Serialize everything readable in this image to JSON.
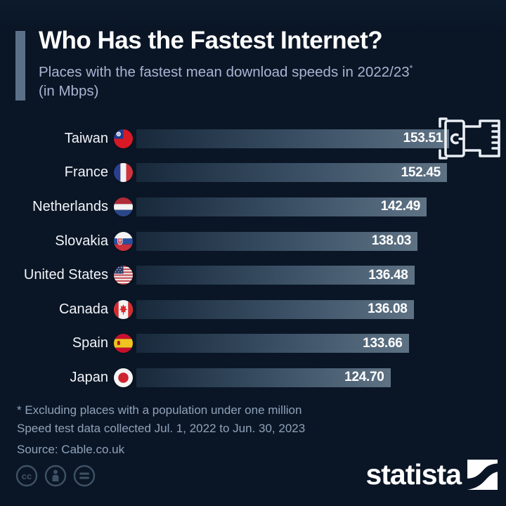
{
  "header": {
    "title": "Who Has the Fastest Internet?",
    "subtitle": "Places with the fastest mean download speeds in 2022/23",
    "subtitle_superscript": "*",
    "subtitle_unit": "(in Mbps)"
  },
  "chart_data": {
    "type": "bar",
    "orientation": "horizontal",
    "title": "Who Has the Fastest Internet?",
    "subtitle": "Places with the fastest mean download speeds in 2022/23* (in Mbps)",
    "unit": "Mbps",
    "xlim": [
      0,
      153.51
    ],
    "grid": false,
    "legend": false,
    "categories": [
      "Taiwan",
      "France",
      "Netherlands",
      "Slovakia",
      "United States",
      "Canada",
      "Spain",
      "Japan"
    ],
    "values": [
      153.51,
      152.45,
      142.49,
      138.03,
      136.48,
      136.08,
      133.66,
      124.7
    ],
    "value_labels": [
      "153.51",
      "152.45",
      "142.49",
      "138.03",
      "136.48",
      "136.08",
      "133.66",
      "124.70"
    ],
    "flags": [
      "taiwan-flag",
      "france-flag",
      "netherlands-flag",
      "slovakia-flag",
      "united-states-flag",
      "canada-flag",
      "spain-flag",
      "japan-flag"
    ]
  },
  "footnotes": {
    "line1": "* Excluding places with a population under one million",
    "line2": "Speed test data collected Jul. 1, 2022 to Jun. 30, 2023",
    "source": "Source: Cable.co.uk"
  },
  "footer": {
    "logo_text": "statista",
    "license_icons": [
      "cc-icon",
      "attribution-icon",
      "equals-icon"
    ]
  },
  "colors": {
    "background": "#0a1626",
    "accent_bar": "#5d7089",
    "bar_gradient_end": "#5e7284",
    "title_text": "#ffffff",
    "subtitle_text": "#a9b4d3",
    "footnote_text": "#90a2ba",
    "license_icon": "#3f5166"
  }
}
